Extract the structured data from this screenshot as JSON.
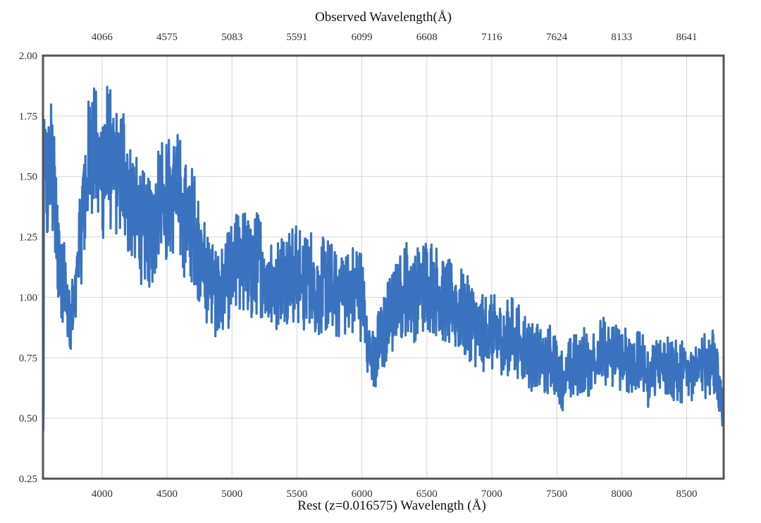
{
  "chart_data": {
    "type": "line",
    "title": "",
    "xlabel": "Rest (z=0.016575) Wavelength (Å)",
    "x2label": "Observed Wavelength(Å)",
    "ylabel": "",
    "xlim": [
      3545,
      8785
    ],
    "ylim": [
      0.25,
      2.0
    ],
    "x_ticks": [
      "4000",
      "4500",
      "5000",
      "5500",
      "6000",
      "6500",
      "7000",
      "7500",
      "8000",
      "8500"
    ],
    "x2_ticks": [
      "4066",
      "4575",
      "5083",
      "5591",
      "6099",
      "6608",
      "7116",
      "7624",
      "8133",
      "8641"
    ],
    "y_ticks": [
      "0.25",
      "0.50",
      "0.75",
      "1.00",
      "1.25",
      "1.50",
      "1.75",
      "2.00"
    ],
    "grid": true,
    "series_color": "#3a72bf",
    "series": [
      {
        "x": [
          3550,
          3580,
          3610,
          3640,
          3670,
          3700,
          3720,
          3740,
          3760,
          3790,
          3820,
          3860,
          3900,
          3930,
          3960,
          4000,
          4040,
          4080,
          4120,
          4160,
          4200,
          4250,
          4300,
          4350,
          4400,
          4450,
          4500,
          4550,
          4600,
          4650,
          4700,
          4750,
          4800,
          4850,
          4900,
          4950,
          5000,
          5050,
          5100,
          5150,
          5200,
          5250,
          5300,
          5350,
          5400,
          5450,
          5500,
          5550,
          5600,
          5650,
          5700,
          5750,
          5800,
          5850,
          5900,
          5950,
          6000,
          6030,
          6060,
          6100,
          6130,
          6160,
          6200,
          6250,
          6300,
          6350,
          6400,
          6450,
          6500,
          6550,
          6600,
          6650,
          6700,
          6750,
          6800,
          6850,
          6900,
          6950,
          7000,
          7050,
          7100,
          7150,
          7200,
          7250,
          7300,
          7350,
          7400,
          7450,
          7500,
          7550,
          7600,
          7650,
          7700,
          7750,
          7800,
          7850,
          7900,
          7950,
          8000,
          8050,
          8100,
          8150,
          8200,
          8250,
          8300,
          8350,
          8400,
          8450,
          8500,
          8550,
          8600,
          8650,
          8700,
          8730,
          8760,
          8785
        ],
        "y": [
          1.6,
          1.45,
          1.55,
          1.35,
          1.15,
          1.1,
          1.05,
          0.9,
          0.85,
          1.0,
          1.2,
          1.4,
          1.55,
          1.7,
          1.55,
          1.5,
          1.6,
          1.55,
          1.5,
          1.55,
          1.45,
          1.35,
          1.3,
          1.25,
          1.3,
          1.45,
          1.4,
          1.45,
          1.4,
          1.3,
          1.3,
          1.2,
          1.1,
          1.05,
          1.0,
          1.05,
          1.1,
          1.15,
          1.15,
          1.1,
          1.15,
          1.1,
          1.05,
          1.05,
          1.1,
          1.1,
          1.1,
          1.05,
          1.1,
          1.0,
          1.05,
          1.05,
          1.0,
          1.05,
          1.0,
          1.05,
          1.0,
          0.85,
          0.8,
          0.75,
          0.8,
          0.85,
          0.9,
          0.95,
          1.0,
          1.05,
          1.0,
          1.05,
          1.05,
          1.05,
          1.0,
          1.0,
          0.95,
          0.95,
          0.92,
          0.9,
          0.85,
          0.85,
          0.85,
          0.85,
          0.82,
          0.85,
          0.82,
          0.8,
          0.75,
          0.78,
          0.72,
          0.75,
          0.72,
          0.65,
          0.7,
          0.72,
          0.75,
          0.72,
          0.75,
          0.78,
          0.75,
          0.78,
          0.72,
          0.75,
          0.7,
          0.75,
          0.65,
          0.7,
          0.72,
          0.72,
          0.7,
          0.68,
          0.72,
          0.7,
          0.7,
          0.72,
          0.75,
          0.7,
          0.6,
          0.5
        ]
      }
    ]
  }
}
